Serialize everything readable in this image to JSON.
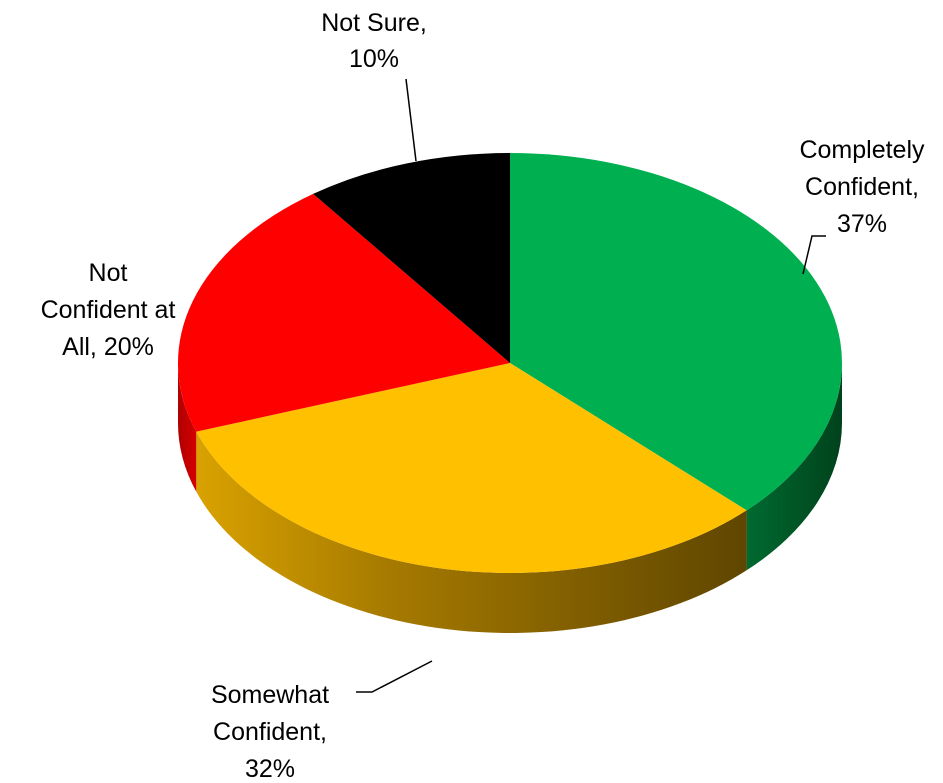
{
  "chart_data": {
    "type": "pie",
    "style": "3d",
    "title": "",
    "slices": [
      {
        "label": "Completely Confident",
        "value": 37,
        "value_label": "37%",
        "color": "#00B050"
      },
      {
        "label": "Somewhat Confident",
        "value": 32,
        "value_label": "32%",
        "color": "#FFC000"
      },
      {
        "label": "Not Confident at All",
        "value": 20,
        "value_label": "20%",
        "color": "#FF0000"
      },
      {
        "label": "Not Sure",
        "value": 10,
        "value_label": "10%",
        "color": "#000000"
      }
    ],
    "data_labels": [
      {
        "lines": [
          "Completely",
          "Confident,",
          "37%"
        ]
      },
      {
        "lines": [
          "Somewhat",
          "Confident,",
          "32%"
        ]
      },
      {
        "lines": [
          "Not",
          "Confident at",
          "All, 20%"
        ]
      },
      {
        "lines": [
          "Not Sure,",
          "10%"
        ]
      }
    ],
    "legend": "none"
  }
}
